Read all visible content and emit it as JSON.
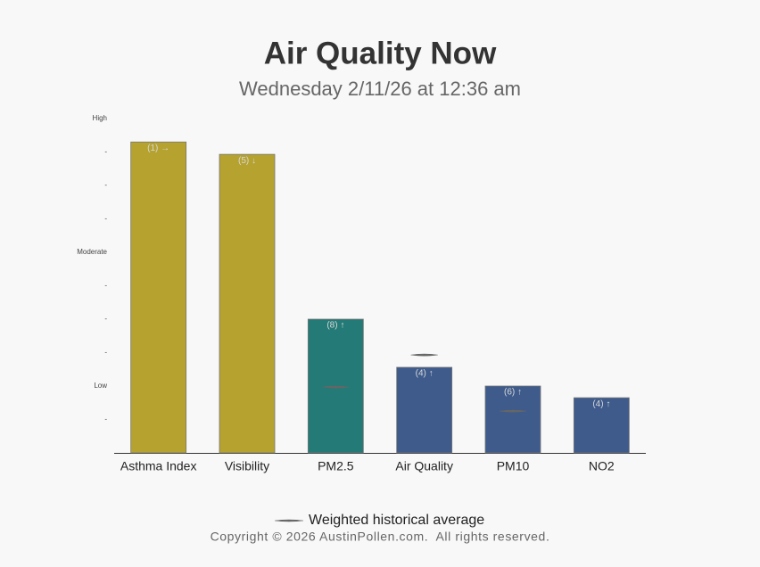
{
  "chart_data": {
    "type": "bar",
    "title": "Air Quality Now",
    "subtitle": "Wednesday 2/11/26 at 12:36 am",
    "categories": [
      "Asthma Index",
      "Visibility",
      "PM2.5",
      "Air Quality",
      "PM10",
      "NO2"
    ],
    "values": [
      9.3,
      8.93,
      4.0,
      2.56,
      2.0,
      1.65
    ],
    "annotations": [
      "(1) →",
      "(5) ↓",
      "(8) ↑",
      "(4) ↑",
      "(6) ↑",
      "(4) ↑"
    ],
    "colors": [
      "#b5a22f",
      "#b5a22f",
      "#247a76",
      "#3e5b8c",
      "#3e5b8c",
      "#3e5b8c"
    ],
    "historical": {
      "name": "Weighted historical average",
      "color": "#666666",
      "values": [
        null,
        null,
        1.97,
        2.93,
        1.25,
        null
      ]
    },
    "ylim": [
      0,
      10
    ],
    "yticks": [
      {
        "value": 1,
        "label": "-"
      },
      {
        "value": 2,
        "label": "Low"
      },
      {
        "value": 3,
        "label": "-"
      },
      {
        "value": 4,
        "label": "-"
      },
      {
        "value": 5,
        "label": "-"
      },
      {
        "value": 6,
        "label": "Moderate"
      },
      {
        "value": 7,
        "label": "-"
      },
      {
        "value": 8,
        "label": "-"
      },
      {
        "value": 9,
        "label": "-"
      },
      {
        "value": 10,
        "label": "High"
      }
    ],
    "grid": false,
    "footer": "Copyright © 2026 AustinPollen.com.  All rights reserved."
  }
}
